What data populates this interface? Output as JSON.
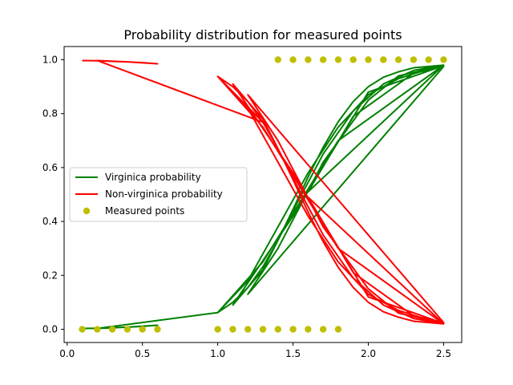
{
  "chart_data": {
    "type": "line",
    "title": "Probability distribution for measured points",
    "xlabel": "",
    "ylabel": "",
    "xlim": [
      -0.02,
      2.62
    ],
    "ylim": [
      -0.049,
      1.049
    ],
    "xticks": [
      0.0,
      0.5,
      1.0,
      1.5,
      2.0,
      2.5
    ],
    "xtick_labels": [
      "0.0",
      "0.5",
      "1.0",
      "1.5",
      "2.0",
      "2.5"
    ],
    "yticks": [
      0.0,
      0.2,
      0.4,
      0.6,
      0.8,
      1.0
    ],
    "ytick_labels": [
      "0.0",
      "0.2",
      "0.4",
      "0.6",
      "0.8",
      "1.0"
    ],
    "grid": false,
    "legend_position": "center-left",
    "series": [
      {
        "name": "Virginica probability",
        "kind": "line",
        "color": "#008000",
        "x": [
          0.1,
          0.2,
          0.3,
          0.4,
          0.5,
          0.6,
          0.4,
          0.2,
          1.0,
          1.1,
          1.2,
          1.3,
          1.4,
          1.5,
          1.6,
          1.7,
          1.8,
          1.9,
          2.0,
          2.1,
          2.2,
          2.3,
          2.4,
          2.5,
          1.8,
          1.3,
          1.0,
          1.2,
          1.4,
          1.6,
          1.8,
          2.0,
          2.2,
          2.4,
          2.5,
          2.0,
          1.5,
          1.1,
          1.3,
          1.5,
          1.7,
          1.9,
          2.1,
          2.3,
          2.5,
          1.6,
          1.9,
          2.3,
          2.5,
          1.2,
          1.4,
          1.7,
          2.0,
          2.2,
          2.5
        ],
        "y": [
          0.003,
          0.004,
          0.006,
          0.008,
          0.011,
          0.015,
          0.008,
          0.003,
          0.062,
          0.1,
          0.155,
          0.232,
          0.33,
          0.445,
          0.565,
          0.675,
          0.77,
          0.845,
          0.9,
          0.935,
          0.955,
          0.97,
          0.975,
          0.98,
          0.7,
          0.25,
          0.062,
          0.18,
          0.38,
          0.58,
          0.75,
          0.87,
          0.93,
          0.965,
          0.978,
          0.88,
          0.42,
          0.09,
          0.22,
          0.44,
          0.65,
          0.81,
          0.91,
          0.96,
          0.98,
          0.51,
          0.79,
          0.95,
          0.975,
          0.13,
          0.3,
          0.62,
          0.85,
          0.94,
          0.978
        ]
      },
      {
        "name": "Non-virginica probability",
        "kind": "line",
        "color": "#ff0000",
        "x": [
          0.1,
          0.2,
          0.3,
          0.4,
          0.5,
          0.6,
          0.4,
          0.2,
          1.3,
          1.0,
          1.1,
          1.2,
          1.3,
          1.4,
          1.5,
          1.6,
          1.7,
          1.8,
          1.9,
          2.0,
          2.1,
          2.2,
          2.3,
          2.4,
          2.5,
          1.8,
          1.3,
          1.0,
          1.2,
          1.4,
          1.6,
          1.8,
          2.0,
          2.2,
          2.4,
          2.5,
          2.0,
          1.5,
          1.1,
          1.3,
          1.5,
          1.7,
          1.9,
          2.1,
          2.3,
          2.5,
          1.6,
          1.9,
          2.3,
          2.5,
          1.2,
          1.4,
          1.7,
          2.0,
          2.2,
          2.5
        ],
        "y": [
          0.997,
          0.996,
          0.994,
          0.992,
          0.989,
          0.985,
          0.992,
          0.997,
          0.768,
          0.938,
          0.9,
          0.845,
          0.768,
          0.67,
          0.555,
          0.435,
          0.325,
          0.23,
          0.155,
          0.1,
          0.065,
          0.045,
          0.03,
          0.025,
          0.02,
          0.3,
          0.75,
          0.938,
          0.82,
          0.62,
          0.42,
          0.25,
          0.13,
          0.07,
          0.035,
          0.022,
          0.12,
          0.58,
          0.91,
          0.78,
          0.56,
          0.35,
          0.19,
          0.09,
          0.04,
          0.02,
          0.49,
          0.21,
          0.05,
          0.025,
          0.87,
          0.7,
          0.38,
          0.15,
          0.06,
          0.022
        ]
      },
      {
        "name": "Measured points",
        "kind": "scatter",
        "color": "#bfbf00",
        "x": [
          0.1,
          0.2,
          0.3,
          0.4,
          0.5,
          0.6,
          1.0,
          1.1,
          1.2,
          1.3,
          1.4,
          1.5,
          1.6,
          1.7,
          1.8,
          1.4,
          1.5,
          1.6,
          1.7,
          1.8,
          1.9,
          2.0,
          2.1,
          2.2,
          2.3,
          2.4,
          2.5
        ],
        "y": [
          0,
          0,
          0,
          0,
          0,
          0,
          0,
          0,
          0,
          0,
          0,
          0,
          0,
          0,
          0,
          1,
          1,
          1,
          1,
          1,
          1,
          1,
          1,
          1,
          1,
          1,
          1
        ]
      }
    ]
  }
}
